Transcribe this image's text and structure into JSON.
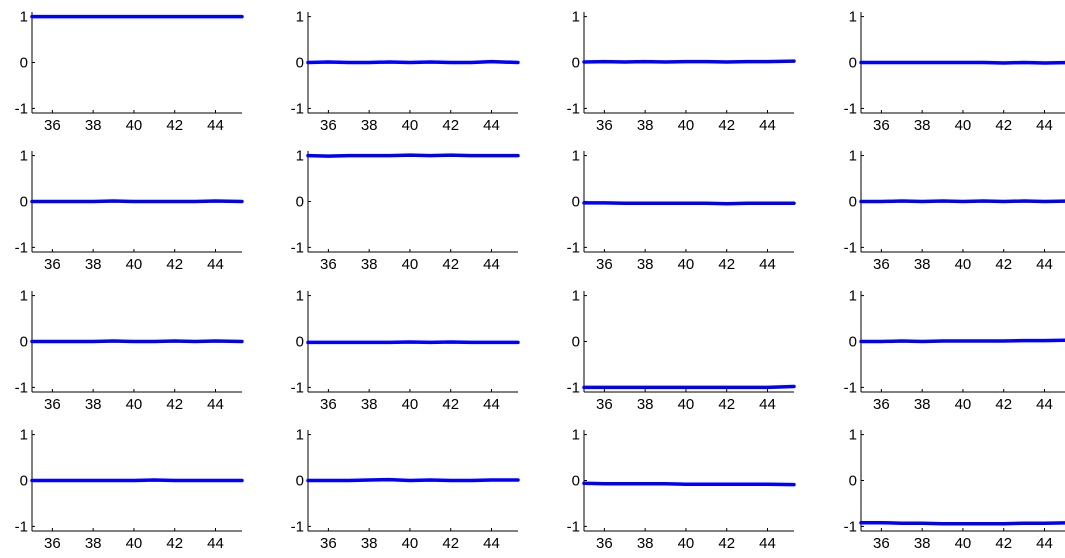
{
  "chart_data": {
    "type": "line",
    "layout": {
      "rows": 4,
      "cols": 4
    },
    "xlim": [
      35,
      45.3
    ],
    "ylim": [
      -1.1,
      1.1
    ],
    "xticks": [
      "36",
      "38",
      "40",
      "42",
      "44"
    ],
    "yticks": [
      "-1",
      "0",
      "1"
    ],
    "series_color": "#0000ff",
    "x": [
      35,
      36,
      37,
      38,
      39,
      40,
      41,
      42,
      43,
      44,
      45.3
    ],
    "panels": [
      {
        "row": 1,
        "col": 1,
        "values": [
          1.0,
          1.0,
          1.0,
          1.0,
          1.0,
          1.0,
          1.0,
          1.0,
          1.0,
          1.0,
          1.0
        ]
      },
      {
        "row": 1,
        "col": 2,
        "values": [
          0.0,
          0.01,
          0.0,
          0.0,
          0.01,
          0.0,
          0.01,
          0.0,
          0.0,
          0.02,
          0.0
        ]
      },
      {
        "row": 1,
        "col": 3,
        "values": [
          0.01,
          0.02,
          0.01,
          0.02,
          0.01,
          0.02,
          0.02,
          0.01,
          0.02,
          0.02,
          0.03
        ]
      },
      {
        "row": 1,
        "col": 4,
        "values": [
          0.0,
          0.0,
          0.0,
          0.0,
          0.0,
          0.0,
          0.0,
          -0.01,
          0.0,
          -0.01,
          0.0
        ]
      },
      {
        "row": 2,
        "col": 1,
        "values": [
          0.0,
          0.0,
          0.0,
          0.0,
          0.01,
          0.0,
          0.0,
          0.0,
          0.0,
          0.01,
          0.0
        ]
      },
      {
        "row": 2,
        "col": 2,
        "values": [
          1.0,
          0.99,
          1.0,
          1.0,
          1.0,
          1.01,
          1.0,
          1.01,
          1.0,
          1.0,
          1.0
        ]
      },
      {
        "row": 2,
        "col": 3,
        "values": [
          -0.03,
          -0.03,
          -0.04,
          -0.04,
          -0.04,
          -0.04,
          -0.04,
          -0.05,
          -0.04,
          -0.04,
          -0.04
        ]
      },
      {
        "row": 2,
        "col": 4,
        "values": [
          0.0,
          0.0,
          0.01,
          0.0,
          0.01,
          0.0,
          0.01,
          0.0,
          0.01,
          0.0,
          0.01
        ]
      },
      {
        "row": 3,
        "col": 1,
        "values": [
          0.0,
          0.0,
          0.0,
          0.0,
          0.01,
          0.0,
          0.0,
          0.01,
          0.0,
          0.01,
          0.0
        ]
      },
      {
        "row": 3,
        "col": 2,
        "values": [
          -0.02,
          -0.02,
          -0.02,
          -0.02,
          -0.02,
          -0.01,
          -0.02,
          -0.01,
          -0.02,
          -0.02,
          -0.02
        ]
      },
      {
        "row": 3,
        "col": 3,
        "values": [
          -1.0,
          -1.0,
          -1.0,
          -1.0,
          -1.0,
          -1.0,
          -1.0,
          -1.0,
          -1.0,
          -1.0,
          -0.98
        ]
      },
      {
        "row": 3,
        "col": 4,
        "values": [
          0.0,
          0.0,
          0.01,
          0.0,
          0.01,
          0.01,
          0.01,
          0.01,
          0.02,
          0.02,
          0.03
        ]
      },
      {
        "row": 4,
        "col": 1,
        "values": [
          0.0,
          0.0,
          0.0,
          0.0,
          0.0,
          0.0,
          0.01,
          0.0,
          0.0,
          0.0,
          0.0
        ]
      },
      {
        "row": 4,
        "col": 2,
        "values": [
          0.0,
          0.0,
          0.0,
          0.01,
          0.02,
          0.0,
          0.01,
          0.0,
          0.0,
          0.01,
          0.01
        ]
      },
      {
        "row": 4,
        "col": 3,
        "values": [
          -0.06,
          -0.07,
          -0.07,
          -0.07,
          -0.07,
          -0.08,
          -0.08,
          -0.08,
          -0.08,
          -0.08,
          -0.09
        ]
      },
      {
        "row": 4,
        "col": 4,
        "values": [
          -0.92,
          -0.92,
          -0.93,
          -0.93,
          -0.94,
          -0.94,
          -0.94,
          -0.94,
          -0.93,
          -0.93,
          -0.92
        ]
      }
    ]
  }
}
